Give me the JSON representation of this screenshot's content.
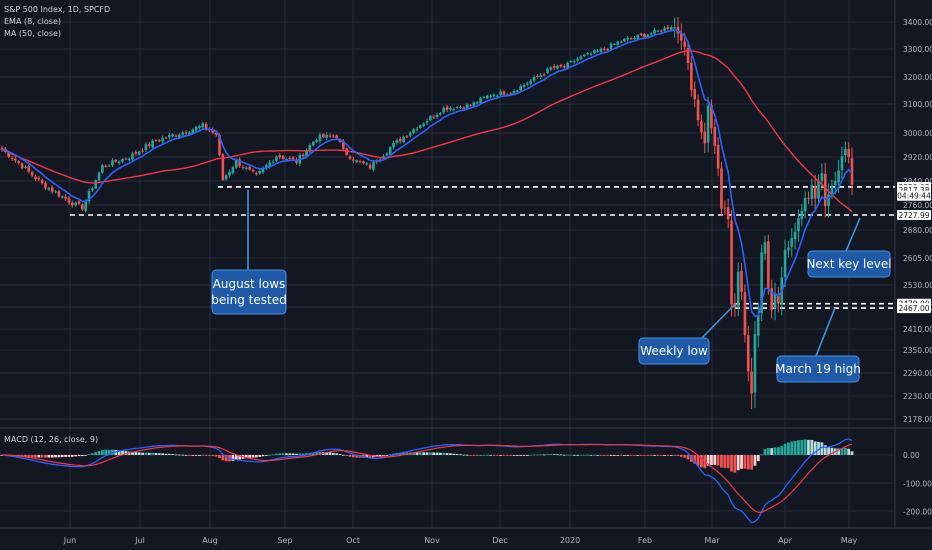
{
  "header": {
    "symbol_line": "S&P 500 Index, 1D, SPCFD",
    "ema_label": "EMA (8, close)",
    "ma_label": "MA (50, close)"
  },
  "macd_label": "MACD (12, 26, close, 9)",
  "annotations": {
    "august": [
      "August lows",
      "being tested"
    ],
    "next_key": "Next key level",
    "weekly_low": "Weekly low",
    "march19": "March 19 high"
  },
  "price_badges": {
    "b1": "2820.08",
    "b2": "2817.38",
    "b3": "04:49:44",
    "b4": "2727.99",
    "b5": "2479.00",
    "b6": "2467.00"
  },
  "colors": {
    "background": "#131722",
    "up": "#26a69a",
    "down": "#ef5350",
    "ema": "#2962ff",
    "ma": "#f23645",
    "annotation_box": "#1e5aa8",
    "annotation_border": "#4a8fe0",
    "grid": "#262b38",
    "text": "#b2b5be"
  },
  "chart_data": [
    {
      "type": "candlestick",
      "title": "S&P 500 Index, 1D, SPCFD",
      "x_ticks": [
        "Jun",
        "Jul",
        "Aug",
        "Sep",
        "Oct",
        "Nov",
        "Dec",
        "2020",
        "Feb",
        "Mar",
        "Apr",
        "May"
      ],
      "y_ticks": [
        3400,
        3300,
        3200,
        3100,
        3000,
        2920,
        2840,
        2760,
        2680,
        2605,
        2530,
        2470,
        2410,
        2350,
        2290,
        2230,
        2178
      ],
      "ylim": [
        2160,
        3420
      ],
      "series": [
        {
          "name": "EMA (8, close)",
          "kind": "line"
        },
        {
          "name": "MA (50, close)",
          "kind": "line"
        }
      ],
      "key_points": [
        {
          "date": "2019-05-31",
          "close": 2752
        },
        {
          "date": "2019-07-26",
          "close": 3025
        },
        {
          "date": "2019-08-05",
          "close": 2845
        },
        {
          "date": "2019-10-02",
          "close": 2887
        },
        {
          "date": "2019-12-31",
          "close": 3231
        },
        {
          "date": "2020-02-19",
          "close": 3386
        },
        {
          "date": "2020-03-23",
          "close": 2237
        },
        {
          "date": "2020-04-29",
          "close": 2940
        },
        {
          "date": "2020-05-01",
          "close": 2830
        }
      ],
      "horizontal_levels": [
        2820.08,
        2727.99,
        2479.0,
        2467.0
      ],
      "grid": true
    },
    {
      "type": "line",
      "title": "MACD (12, 26, close, 9)",
      "y_ticks": [
        0.0,
        -100.0,
        -200.0
      ],
      "ylim": [
        -235,
        60
      ],
      "series": [
        {
          "name": "MACD",
          "kind": "line"
        },
        {
          "name": "Signal",
          "kind": "line"
        },
        {
          "name": "Histogram",
          "kind": "bar"
        }
      ],
      "key_points": [
        {
          "date": "2020-02-19",
          "macd": 40
        },
        {
          "date": "2020-03-23",
          "macd": -215
        },
        {
          "date": "2020-05-01",
          "macd": 45
        }
      ]
    }
  ]
}
